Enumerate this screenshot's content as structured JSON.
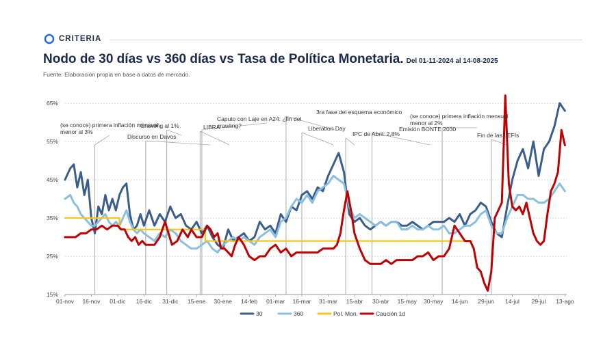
{
  "brand": {
    "name": "CRITERIA"
  },
  "header": {
    "title": "Nodo de 30 días vs 360 días vs Tasa de Política Monetaria.",
    "range": "Del 01-11-2024 al 14-08-2025",
    "source": "Fuente: Elaboración propia en base a datos de mercado."
  },
  "colors": {
    "s30": "#3a5e8c",
    "s360": "#8bbfe0",
    "pol": "#f5c518",
    "cau": "#c00000"
  },
  "chart_data": {
    "type": "line",
    "title": "Nodo de 30 días vs 360 días vs Tasa de Política Monetaria.",
    "ylim": [
      15,
      65
    ],
    "xlim": [
      0,
      286
    ],
    "y_ticks": [
      15,
      25,
      35,
      45,
      55,
      65
    ],
    "y_tick_labels": [
      "15%",
      "25%",
      "35%",
      "45%",
      "55%",
      "65%"
    ],
    "x_ticks": [
      0,
      15,
      30,
      45,
      60,
      75,
      90,
      105,
      120,
      135,
      150,
      165,
      180,
      195,
      210,
      225,
      240,
      255,
      270,
      285
    ],
    "x_tick_labels": [
      "01-nov",
      "16-nov",
      "01-dic",
      "16-dic",
      "31-dic",
      "15-ene",
      "30-ene",
      "14-feb",
      "01-mar",
      "16-mar",
      "31-mar",
      "15-abr",
      "30-abr",
      "15-may",
      "30-may",
      "14-jun",
      "29-jun",
      "14-jul",
      "29-jul",
      "13-ago"
    ],
    "series": [
      {
        "name": "30",
        "color": "#3a5e8c",
        "width": 3,
        "x": [
          0,
          3,
          5,
          7,
          9,
          11,
          13,
          15,
          17,
          19,
          21,
          23,
          25,
          27,
          29,
          31,
          33,
          35,
          37,
          39,
          41,
          43,
          45,
          48,
          51,
          54,
          57,
          60,
          63,
          66,
          69,
          72,
          75,
          78,
          81,
          84,
          87,
          90,
          93,
          96,
          99,
          102,
          105,
          108,
          111,
          114,
          117,
          120,
          123,
          126,
          129,
          132,
          135,
          138,
          141,
          144,
          147,
          150,
          153,
          156,
          159,
          162,
          165,
          168,
          171,
          174,
          177,
          180,
          183,
          186,
          189,
          192,
          195,
          198,
          201,
          204,
          207,
          210,
          213,
          216,
          219,
          222,
          225,
          228,
          231,
          234,
          237,
          240,
          243,
          246,
          249,
          252,
          255,
          258,
          261,
          264,
          267,
          270,
          273,
          276,
          279,
          282,
          285
        ],
        "y": [
          45,
          48,
          49,
          43,
          47,
          41,
          45,
          35,
          31,
          38,
          36,
          41,
          37,
          40,
          37,
          41,
          43,
          44,
          36,
          32,
          33,
          36,
          33,
          37,
          33,
          36,
          34,
          38,
          35,
          36,
          33,
          32,
          34,
          31,
          33,
          30,
          28,
          27,
          32,
          29,
          30,
          31,
          29,
          30,
          34,
          32,
          33,
          31,
          36,
          34,
          38,
          37,
          41,
          42,
          40,
          43,
          42,
          46,
          49,
          52,
          47,
          36,
          34,
          35,
          33,
          32,
          33,
          34,
          33,
          34,
          34,
          33,
          33,
          34,
          33,
          32,
          33,
          34,
          34,
          34,
          35,
          34,
          36,
          33,
          36,
          37,
          39,
          38,
          34,
          31,
          30,
          38,
          45,
          50,
          53,
          48,
          55,
          46,
          53,
          55,
          59,
          65,
          63
        ]
      },
      {
        "name": "360",
        "color": "#8bbfe0",
        "width": 3,
        "x": [
          0,
          3,
          5,
          7,
          9,
          11,
          13,
          15,
          17,
          19,
          21,
          23,
          25,
          27,
          29,
          31,
          33,
          35,
          37,
          39,
          41,
          43,
          45,
          48,
          51,
          54,
          57,
          60,
          63,
          66,
          69,
          72,
          75,
          78,
          81,
          84,
          87,
          90,
          93,
          96,
          99,
          102,
          105,
          108,
          111,
          114,
          117,
          120,
          123,
          126,
          129,
          132,
          135,
          138,
          141,
          144,
          147,
          150,
          153,
          156,
          159,
          162,
          165,
          168,
          171,
          174,
          177,
          180,
          183,
          186,
          189,
          192,
          195,
          198,
          201,
          204,
          207,
          210,
          213,
          216,
          219,
          222,
          225,
          228,
          231,
          234,
          237,
          240,
          243,
          246,
          249,
          252,
          255,
          258,
          261,
          264,
          267,
          270,
          273,
          276,
          279,
          282,
          285
        ],
        "y": [
          40,
          41,
          39,
          38,
          36,
          35,
          34,
          33,
          33,
          34,
          35,
          36,
          34,
          33,
          34,
          33,
          35,
          37,
          34,
          32,
          31,
          32,
          31,
          30,
          29,
          31,
          30,
          32,
          31,
          29,
          28,
          27,
          27,
          28,
          29,
          27,
          26,
          28,
          29,
          30,
          29,
          30,
          29,
          28,
          30,
          31,
          32,
          30,
          34,
          35,
          38,
          40,
          39,
          41,
          39,
          42,
          43,
          44,
          46,
          45,
          44,
          38,
          35,
          36,
          35,
          34,
          33,
          34,
          33,
          34,
          34,
          32,
          32,
          33,
          32,
          32,
          33,
          32,
          32,
          33,
          31,
          31,
          32,
          33,
          33,
          34,
          36,
          37,
          33,
          31,
          31,
          35,
          38,
          41,
          41,
          40,
          40,
          39,
          39,
          40,
          42,
          44,
          42
        ]
      },
      {
        "name": "Pol. Mon.",
        "color": "#f5c518",
        "width": 2.2,
        "x": [
          0,
          31,
          31,
          80,
          80,
          232
        ],
        "y": [
          35,
          35,
          32,
          32,
          29,
          29
        ]
      },
      {
        "name": "Caución 1d",
        "color": "#c00000",
        "width": 3,
        "x": [
          0,
          3,
          6,
          9,
          12,
          15,
          18,
          21,
          24,
          27,
          30,
          32,
          34,
          36,
          38,
          40,
          42,
          44,
          46,
          48,
          51,
          54,
          57,
          59,
          61,
          64,
          67,
          70,
          72,
          75,
          78,
          81,
          83,
          85,
          87,
          89,
          91,
          93,
          95,
          97,
          99,
          102,
          105,
          108,
          111,
          114,
          117,
          120,
          123,
          126,
          129,
          132,
          135,
          138,
          141,
          144,
          147,
          150,
          153,
          155,
          157,
          159,
          161,
          163,
          165,
          168,
          171,
          174,
          177,
          180,
          183,
          186,
          189,
          192,
          195,
          198,
          201,
          204,
          207,
          210,
          213,
          216,
          219,
          222,
          225,
          228,
          231,
          233,
          235,
          237,
          239,
          241,
          243,
          245,
          247,
          249,
          251,
          253,
          255,
          257,
          259,
          261,
          263,
          265,
          267,
          269,
          271,
          273,
          275,
          277,
          279,
          281,
          283,
          285
        ],
        "y": [
          30,
          30,
          30,
          31,
          31,
          32,
          32,
          33,
          32,
          33,
          33,
          32,
          32,
          30,
          29,
          30,
          28,
          29,
          28,
          28,
          28,
          30,
          34,
          31,
          28,
          29,
          32,
          30,
          32,
          30,
          30,
          33,
          32,
          30,
          31,
          27,
          27,
          26,
          25,
          28,
          30,
          28,
          25,
          24,
          25,
          25,
          27,
          28,
          26,
          27,
          25,
          26,
          26,
          26,
          26,
          26,
          27,
          27,
          27,
          28,
          31,
          37,
          42,
          37,
          31,
          27,
          24,
          23,
          23,
          23,
          24,
          23,
          24,
          24,
          24,
          24,
          25,
          25,
          26,
          24,
          25,
          25,
          27,
          33,
          31,
          29,
          29,
          27,
          22,
          21,
          18,
          16,
          21,
          35,
          37,
          39,
          67,
          44,
          38,
          37,
          38,
          36,
          39,
          35,
          31,
          29,
          28,
          29,
          36,
          42,
          44,
          47,
          58,
          54
        ]
      }
    ],
    "annotations": [
      {
        "x": 17,
        "lines": [
          "(se conoce) primera inflación mensual",
          "menor al 3%"
        ]
      },
      {
        "x": 58,
        "lines": [
          "Crawling al 1%"
        ]
      },
      {
        "x": 46,
        "lines": [
          "Discurso en Davos"
        ]
      },
      {
        "x": 77,
        "lines": [
          "LIBRA"
        ]
      },
      {
        "x": 78,
        "lines": [
          "Caputo con Laje en A24: ¿fin del",
          "crawling?"
        ]
      },
      {
        "x": 126,
        "lines": [
          "3ra fase del esquema económico"
        ]
      },
      {
        "x": 135,
        "lines": [
          "Liberation Day"
        ]
      },
      {
        "x": 160,
        "lines": [
          "IPC de Abril: 2,8%"
        ]
      },
      {
        "x": 175,
        "lines": [
          "Emisión BONTE 2030"
        ]
      },
      {
        "x": 215,
        "lines": [
          "(se conoce) primera inflación mensual",
          "menor al 2%"
        ]
      },
      {
        "x": 243,
        "lines": [
          "Fin de las LEFIs"
        ]
      }
    ]
  }
}
